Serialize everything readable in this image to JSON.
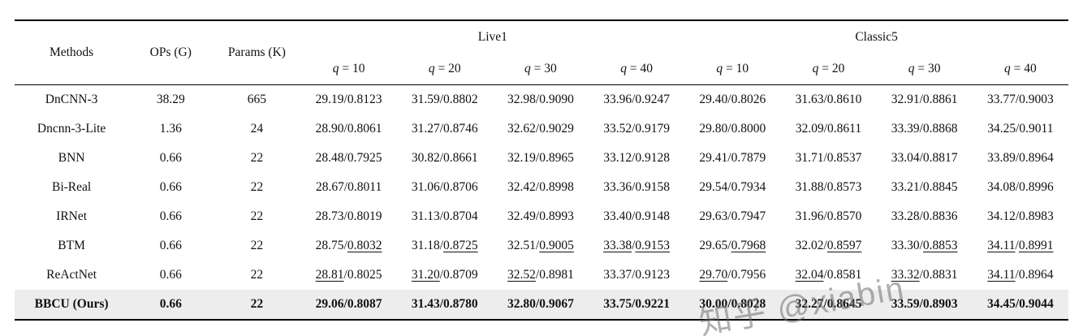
{
  "watermark": "知乎 @xiabin",
  "table": {
    "col_methods": "Methods",
    "col_ops": "OPs (G)",
    "col_params": "Params (K)",
    "groups": [
      {
        "label": "Live1"
      },
      {
        "label": "Classic5"
      }
    ],
    "q_labels": [
      "q = 10",
      "q = 20",
      "q = 30",
      "q = 40",
      "q = 10",
      "q = 20",
      "q = 30",
      "q = 40"
    ],
    "rows": [
      {
        "method": "DnCNN-3",
        "ops": "38.29",
        "params": "665",
        "highlight": false,
        "cells": [
          {
            "p": "29.19",
            "s": "0.8123",
            "up": false,
            "us": false
          },
          {
            "p": "31.59",
            "s": "0.8802",
            "up": false,
            "us": false
          },
          {
            "p": "32.98",
            "s": "0.9090",
            "up": false,
            "us": false
          },
          {
            "p": "33.96",
            "s": "0.9247",
            "up": false,
            "us": false
          },
          {
            "p": "29.40",
            "s": "0.8026",
            "up": false,
            "us": false
          },
          {
            "p": "31.63",
            "s": "0.8610",
            "up": false,
            "us": false
          },
          {
            "p": "32.91",
            "s": "0.8861",
            "up": false,
            "us": false
          },
          {
            "p": "33.77",
            "s": "0.9003",
            "up": false,
            "us": false
          }
        ]
      },
      {
        "method": "Dncnn-3-Lite",
        "ops": "1.36",
        "params": "24",
        "highlight": false,
        "cells": [
          {
            "p": "28.90",
            "s": "0.8061",
            "up": false,
            "us": false
          },
          {
            "p": "31.27",
            "s": "0.8746",
            "up": false,
            "us": false
          },
          {
            "p": "32.62",
            "s": "0.9029",
            "up": false,
            "us": false
          },
          {
            "p": "33.52",
            "s": "0.9179",
            "up": false,
            "us": false
          },
          {
            "p": "29.80",
            "s": "0.8000",
            "up": false,
            "us": false
          },
          {
            "p": "32.09",
            "s": "0.8611",
            "up": false,
            "us": false
          },
          {
            "p": "33.39",
            "s": "0.8868",
            "up": false,
            "us": false
          },
          {
            "p": "34.25",
            "s": "0.9011",
            "up": false,
            "us": false
          }
        ]
      },
      {
        "method": "BNN",
        "ops": "0.66",
        "params": "22",
        "highlight": false,
        "cells": [
          {
            "p": "28.48",
            "s": "0.7925",
            "up": false,
            "us": false
          },
          {
            "p": "30.82",
            "s": "0.8661",
            "up": false,
            "us": false
          },
          {
            "p": "32.19",
            "s": "0.8965",
            "up": false,
            "us": false
          },
          {
            "p": "33.12",
            "s": "0.9128",
            "up": false,
            "us": false
          },
          {
            "p": "29.41",
            "s": "0.7879",
            "up": false,
            "us": false
          },
          {
            "p": "31.71",
            "s": "0.8537",
            "up": false,
            "us": false
          },
          {
            "p": "33.04",
            "s": "0.8817",
            "up": false,
            "us": false
          },
          {
            "p": "33.89",
            "s": "0.8964",
            "up": false,
            "us": false
          }
        ]
      },
      {
        "method": "Bi-Real",
        "ops": "0.66",
        "params": "22",
        "highlight": false,
        "cells": [
          {
            "p": "28.67",
            "s": "0.8011",
            "up": false,
            "us": false
          },
          {
            "p": "31.06",
            "s": "0.8706",
            "up": false,
            "us": false
          },
          {
            "p": "32.42",
            "s": "0.8998",
            "up": false,
            "us": false
          },
          {
            "p": "33.36",
            "s": "0.9158",
            "up": false,
            "us": false
          },
          {
            "p": "29.54",
            "s": "0.7934",
            "up": false,
            "us": false
          },
          {
            "p": "31.88",
            "s": "0.8573",
            "up": false,
            "us": false
          },
          {
            "p": "33.21",
            "s": "0.8845",
            "up": false,
            "us": false
          },
          {
            "p": "34.08",
            "s": "0.8996",
            "up": false,
            "us": false
          }
        ]
      },
      {
        "method": "IRNet",
        "ops": "0.66",
        "params": "22",
        "highlight": false,
        "cells": [
          {
            "p": "28.73",
            "s": "0.8019",
            "up": false,
            "us": false
          },
          {
            "p": "31.13",
            "s": "0.8704",
            "up": false,
            "us": false
          },
          {
            "p": "32.49",
            "s": "0.8993",
            "up": false,
            "us": false
          },
          {
            "p": "33.40",
            "s": "0.9148",
            "up": false,
            "us": false
          },
          {
            "p": "29.63",
            "s": "0.7947",
            "up": false,
            "us": false
          },
          {
            "p": "31.96",
            "s": "0.8570",
            "up": false,
            "us": false
          },
          {
            "p": "33.28",
            "s": "0.8836",
            "up": false,
            "us": false
          },
          {
            "p": "34.12",
            "s": "0.8983",
            "up": false,
            "us": false
          }
        ]
      },
      {
        "method": "BTM",
        "ops": "0.66",
        "params": "22",
        "highlight": false,
        "cells": [
          {
            "p": "28.75",
            "s": "0.8032",
            "up": false,
            "us": true
          },
          {
            "p": "31.18",
            "s": "0.8725",
            "up": false,
            "us": true
          },
          {
            "p": "32.51",
            "s": "0.9005",
            "up": false,
            "us": true
          },
          {
            "p": "33.38",
            "s": "0.9153",
            "up": true,
            "us": true
          },
          {
            "p": "29.65",
            "s": "0.7968",
            "up": false,
            "us": true
          },
          {
            "p": "32.02",
            "s": "0.8597",
            "up": false,
            "us": true
          },
          {
            "p": "33.30",
            "s": "0.8853",
            "up": false,
            "us": true
          },
          {
            "p": "34.11",
            "s": "0.8991",
            "up": true,
            "us": true
          }
        ]
      },
      {
        "method": "ReActNet",
        "ops": "0.66",
        "params": "22",
        "highlight": false,
        "cells": [
          {
            "p": "28.81",
            "s": "0.8025",
            "up": true,
            "us": false
          },
          {
            "p": "31.20",
            "s": "0.8709",
            "up": true,
            "us": false
          },
          {
            "p": "32.52",
            "s": "0.8981",
            "up": true,
            "us": false
          },
          {
            "p": "33.37",
            "s": "0.9123",
            "up": false,
            "us": false
          },
          {
            "p": "29.70",
            "s": "0.7956",
            "up": true,
            "us": false
          },
          {
            "p": "32.04",
            "s": "0.8581",
            "up": true,
            "us": false
          },
          {
            "p": "33.32",
            "s": "0.8831",
            "up": true,
            "us": false
          },
          {
            "p": "34.11",
            "s": "0.8964",
            "up": true,
            "us": false
          }
        ]
      },
      {
        "method": "BBCU (Ours)",
        "ops": "0.66",
        "params": "22",
        "highlight": true,
        "cells": [
          {
            "p": "29.06",
            "s": "0.8087",
            "up": false,
            "us": false
          },
          {
            "p": "31.43",
            "s": "0.8780",
            "up": false,
            "us": false
          },
          {
            "p": "32.80",
            "s": "0.9067",
            "up": false,
            "us": false
          },
          {
            "p": "33.75",
            "s": "0.9221",
            "up": false,
            "us": false
          },
          {
            "p": "30.00",
            "s": "0.8028",
            "up": false,
            "us": false
          },
          {
            "p": "32.27",
            "s": "0.8645",
            "up": false,
            "us": false
          },
          {
            "p": "33.59",
            "s": "0.8903",
            "up": false,
            "us": false
          },
          {
            "p": "34.45",
            "s": "0.9044",
            "up": false,
            "us": false
          }
        ]
      }
    ]
  }
}
